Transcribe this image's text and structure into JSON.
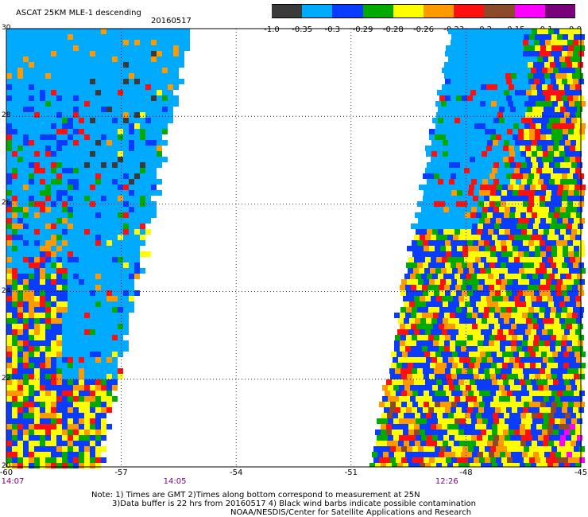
{
  "header": {
    "title": "ASCAT 25KM MLE-1 descending",
    "date": "20160517"
  },
  "colorbar": {
    "colors": [
      "#3a3a3a",
      "#00aaff",
      "#0a3cff",
      "#00aa00",
      "#ffff00",
      "#ff9900",
      "#ff1010",
      "#8b4a2a",
      "#ff00ff",
      "#7a007a"
    ],
    "labels": [
      "-1.0",
      "-0.35",
      "-0.3",
      "-0.29",
      "-0.28",
      "-0.26",
      "-0.23",
      "-0.2",
      "-0.15",
      "-0.1",
      "0.0"
    ]
  },
  "map": {
    "lon_range": [
      -60,
      -45
    ],
    "lat_range": [
      20,
      30
    ],
    "x_ticks": [
      "-60",
      "-57",
      "-54",
      "-51",
      "-48",
      "-45"
    ],
    "y_ticks": [
      "30",
      "28",
      "26",
      "24",
      "22",
      "20"
    ],
    "times": [
      {
        "text": "14:07",
        "lon": -60
      },
      {
        "text": "14:05",
        "lon": -55.6
      },
      {
        "text": "12:26",
        "lon": -48.5
      }
    ],
    "swaths": [
      {
        "name": "west-swath",
        "lat_top": 30,
        "lat_bottom": 20,
        "lon_edge_top": -55.3,
        "lon_edge_bottom": -57.6
      },
      {
        "name": "east-swath",
        "lat_top": 30,
        "lat_bottom": 20,
        "lon_edge_top": -48.4,
        "lon_edge_bottom": -50.5
      }
    ]
  },
  "notes": {
    "line1": "Note: 1) Times are GMT 2)Times along bottom correspond to measurement at 25N",
    "line2": "3)Data buffer is 22 hrs from 20160517 4) Black wind barbs indicate possible contamination",
    "line3": "NOAA/NESDIS/Center for Satellite Applications and Research"
  }
}
